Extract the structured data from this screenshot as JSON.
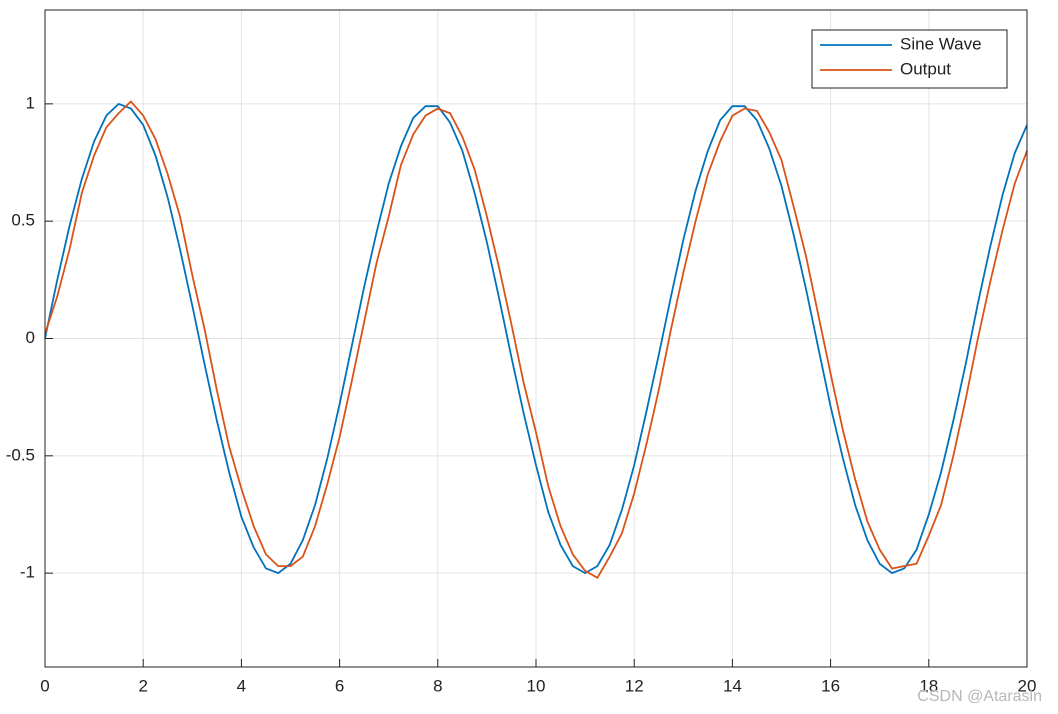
{
  "chart_data": {
    "type": "line",
    "x": [
      0,
      0.25,
      0.5,
      0.75,
      1,
      1.25,
      1.5,
      1.75,
      2,
      2.25,
      2.5,
      2.75,
      3,
      3.25,
      3.5,
      3.75,
      4,
      4.25,
      4.5,
      4.75,
      5,
      5.25,
      5.5,
      5.75,
      6,
      6.25,
      6.5,
      6.75,
      7,
      7.25,
      7.5,
      7.75,
      8,
      8.25,
      8.5,
      8.75,
      9,
      9.25,
      9.5,
      9.75,
      10,
      10.25,
      10.5,
      10.75,
      11,
      11.25,
      11.5,
      11.75,
      12,
      12.25,
      12.5,
      12.75,
      13,
      13.25,
      13.5,
      13.75,
      14,
      14.25,
      14.5,
      14.75,
      15,
      15.25,
      15.5,
      15.75,
      16,
      16.25,
      16.5,
      16.75,
      17,
      17.25,
      17.5,
      17.75,
      18,
      18.25,
      18.5,
      18.75,
      19,
      19.25,
      19.5,
      19.75,
      20
    ],
    "series": [
      {
        "name": "Sine Wave",
        "color": "#0072bd",
        "values": [
          0,
          0.25,
          0.48,
          0.68,
          0.84,
          0.95,
          1,
          0.98,
          0.91,
          0.78,
          0.6,
          0.38,
          0.14,
          -0.11,
          -0.35,
          -0.57,
          -0.76,
          -0.89,
          -0.98,
          -1,
          -0.96,
          -0.86,
          -0.71,
          -0.51,
          -0.28,
          -0.03,
          0.22,
          0.45,
          0.66,
          0.82,
          0.94,
          0.99,
          0.99,
          0.92,
          0.8,
          0.62,
          0.41,
          0.17,
          -0.08,
          -0.32,
          -0.54,
          -0.74,
          -0.88,
          -0.97,
          -1,
          -0.97,
          -0.88,
          -0.73,
          -0.54,
          -0.31,
          -0.07,
          0.18,
          0.42,
          0.63,
          0.8,
          0.93,
          0.99,
          0.99,
          0.93,
          0.81,
          0.65,
          0.44,
          0.21,
          -0.04,
          -0.29,
          -0.51,
          -0.71,
          -0.86,
          -0.96,
          -1,
          -0.98,
          -0.9,
          -0.75,
          -0.57,
          -0.35,
          -0.11,
          0.15,
          0.39,
          0.61,
          0.79,
          0.91
        ]
      },
      {
        "name": "Output",
        "color": "#d95319",
        "values": [
          0.02,
          0.18,
          0.38,
          0.62,
          0.78,
          0.9,
          0.96,
          1.01,
          0.95,
          0.85,
          0.7,
          0.52,
          0.27,
          0.04,
          -0.22,
          -0.46,
          -0.64,
          -0.8,
          -0.92,
          -0.97,
          -0.97,
          -0.93,
          -0.8,
          -0.62,
          -0.42,
          -0.18,
          0.07,
          0.32,
          0.52,
          0.74,
          0.87,
          0.95,
          0.98,
          0.96,
          0.86,
          0.72,
          0.52,
          0.3,
          0.06,
          -0.19,
          -0.4,
          -0.63,
          -0.8,
          -0.92,
          -0.99,
          -1.02,
          -0.93,
          -0.83,
          -0.66,
          -0.45,
          -0.22,
          0.04,
          0.28,
          0.5,
          0.7,
          0.84,
          0.95,
          0.98,
          0.97,
          0.88,
          0.76,
          0.56,
          0.35,
          0.1,
          -0.15,
          -0.39,
          -0.6,
          -0.78,
          -0.9,
          -0.98,
          -0.97,
          -0.96,
          -0.84,
          -0.71,
          -0.5,
          -0.26,
          0,
          0.24,
          0.46,
          0.66,
          0.8
        ]
      }
    ],
    "xlim": [
      0,
      20
    ],
    "xticks": [
      0,
      2,
      4,
      6,
      8,
      10,
      12,
      14,
      16,
      18,
      20
    ],
    "ylim": [
      -1.4,
      1.4
    ],
    "yticks": [
      -1,
      -0.5,
      0,
      0.5,
      1
    ],
    "grid": true,
    "legend": "upper right",
    "watermark": "CSDN @Atarasin"
  }
}
